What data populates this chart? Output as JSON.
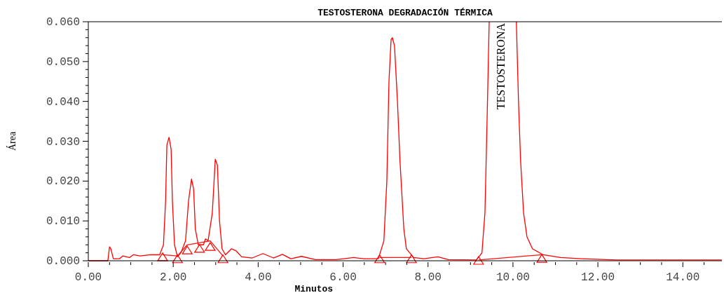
{
  "chart_data": {
    "type": "line",
    "title": "TESTOSTERONA DEGRADACIÓN TÉRMICA",
    "xlabel": "Minutos",
    "ylabel": "Área",
    "xlim": [
      0,
      14.92
    ],
    "ylim": [
      0,
      0.06
    ],
    "xticks": [
      {
        "value": 0,
        "label": "0.00"
      },
      {
        "value": 0.5,
        "label": null
      },
      {
        "value": 1,
        "label": null
      },
      {
        "value": 1.5,
        "label": null
      },
      {
        "value": 2,
        "label": "2.00"
      },
      {
        "value": 2.5,
        "label": null
      },
      {
        "value": 3,
        "label": null
      },
      {
        "value": 3.5,
        "label": null
      },
      {
        "value": 4,
        "label": "4.00"
      },
      {
        "value": 4.5,
        "label": null
      },
      {
        "value": 5,
        "label": null
      },
      {
        "value": 5.5,
        "label": null
      },
      {
        "value": 6,
        "label": "6.00"
      },
      {
        "value": 6.5,
        "label": null
      },
      {
        "value": 7,
        "label": null
      },
      {
        "value": 7.5,
        "label": null
      },
      {
        "value": 8,
        "label": "8.00"
      },
      {
        "value": 8.5,
        "label": null
      },
      {
        "value": 9,
        "label": null
      },
      {
        "value": 9.5,
        "label": null
      },
      {
        "value": 10,
        "label": "10.00"
      },
      {
        "value": 10.5,
        "label": null
      },
      {
        "value": 11,
        "label": null
      },
      {
        "value": 11.5,
        "label": null
      },
      {
        "value": 12,
        "label": "12.00"
      },
      {
        "value": 12.5,
        "label": null
      },
      {
        "value": 13,
        "label": null
      },
      {
        "value": 13.5,
        "label": null
      },
      {
        "value": 14,
        "label": "14.00"
      },
      {
        "value": 14.5,
        "label": null
      }
    ],
    "yticks": [
      {
        "value": 0,
        "label": "0.000"
      },
      {
        "value": 0.002,
        "label": null
      },
      {
        "value": 0.004,
        "label": null
      },
      {
        "value": 0.006,
        "label": null
      },
      {
        "value": 0.008,
        "label": null
      },
      {
        "value": 0.01,
        "label": "0.010"
      },
      {
        "value": 0.012,
        "label": null
      },
      {
        "value": 0.014,
        "label": null
      },
      {
        "value": 0.016,
        "label": null
      },
      {
        "value": 0.018,
        "label": null
      },
      {
        "value": 0.02,
        "label": "0.020"
      },
      {
        "value": 0.022,
        "label": null
      },
      {
        "value": 0.024,
        "label": null
      },
      {
        "value": 0.026,
        "label": null
      },
      {
        "value": 0.028,
        "label": null
      },
      {
        "value": 0.03,
        "label": "0.030"
      },
      {
        "value": 0.032,
        "label": null
      },
      {
        "value": 0.034,
        "label": null
      },
      {
        "value": 0.036,
        "label": null
      },
      {
        "value": 0.038,
        "label": null
      },
      {
        "value": 0.04,
        "label": "0.040"
      },
      {
        "value": 0.042,
        "label": null
      },
      {
        "value": 0.044,
        "label": null
      },
      {
        "value": 0.046,
        "label": null
      },
      {
        "value": 0.048,
        "label": null
      },
      {
        "value": 0.05,
        "label": "0.050"
      },
      {
        "value": 0.052,
        "label": null
      },
      {
        "value": 0.054,
        "label": null
      },
      {
        "value": 0.056,
        "label": null
      },
      {
        "value": 0.058,
        "label": null
      },
      {
        "value": 0.06,
        "label": "0.060"
      }
    ],
    "grid": false,
    "annotations": [
      "TESTOSTERONA"
    ],
    "series": [
      {
        "color": "#ff0000",
        "x": [
          0,
          0.46,
          0.5,
          0.53,
          0.59,
          0.73,
          0.81,
          0.97,
          1.06,
          1.22,
          1.47,
          1.68,
          1.77,
          1.82,
          1.85,
          1.9,
          1.95,
          1.98,
          2.03,
          2.1,
          2.18,
          2.29,
          2.36,
          2.43,
          2.48,
          2.52,
          2.59,
          2.71,
          2.76,
          2.82,
          2.92,
          2.99,
          3.04,
          3.09,
          3.15,
          3.23,
          3.37,
          3.48,
          3.61,
          3.86,
          4.11,
          4.36,
          4.57,
          4.77,
          5.02,
          5.35,
          5.84,
          6.25,
          6.5,
          6.83,
          6.96,
          7.03,
          7.08,
          7.13,
          7.16,
          7.21,
          7.28,
          7.34,
          7.43,
          7.49,
          7.66,
          7.9,
          8.23,
          8.48,
          9.14,
          9.27,
          9.34,
          9.39,
          9.44,
          9.75,
          10.08,
          10.13,
          10.18,
          10.25,
          10.33,
          10.46,
          10.71,
          11.12,
          11.62,
          12.44,
          13.6,
          14.92
        ],
        "values": [
          0,
          0,
          0.0035,
          0.003,
          0.0005,
          0.0005,
          0.0012,
          0.0008,
          0.0015,
          0.0012,
          0.0015,
          0.0015,
          0.004,
          0.015,
          0.029,
          0.031,
          0.028,
          0.015,
          0.004,
          0.001,
          0.002,
          0.005,
          0.015,
          0.0205,
          0.018,
          0.008,
          0.004,
          0.004,
          0.0055,
          0.005,
          0.012,
          0.0255,
          0.024,
          0.01,
          0.003,
          0.0015,
          0.003,
          0.0025,
          0.001,
          0.0007,
          0.0018,
          0.0007,
          0.0016,
          0.0005,
          0.0011,
          0.0003,
          0.0003,
          0.0008,
          0.0005,
          0.0005,
          0.005,
          0.02,
          0.045,
          0.0555,
          0.056,
          0.054,
          0.04,
          0.025,
          0.008,
          0.003,
          0.0008,
          0.0005,
          0.001,
          0.0003,
          0.0002,
          0.002,
          0.012,
          0.035,
          0.06,
          null,
          0.06,
          0.04,
          0.025,
          0.012,
          0.006,
          0.003,
          0.0015,
          0.0008,
          0.0005,
          0.0002,
          0.0002,
          0.0002
        ]
      },
      {
        "color": "#ff1010",
        "x": [
          1.75,
          2.1,
          2.33,
          2.62,
          2.87,
          3.17
        ],
        "values": [
          0.0015,
          0.0012,
          0.004,
          0.0045,
          0.005,
          0.0012
        ]
      },
      {
        "color": "#ff1010",
        "x": [
          6.86,
          7.61
        ],
        "values": [
          0.0008,
          0.0008
        ]
      },
      {
        "color": "#ff1010",
        "x": [
          9.19,
          10.68
        ],
        "values": [
          0.0002,
          0.0015
        ]
      },
      {
        "type": "scatter",
        "marker": "triangle",
        "color": "#ff0000",
        "x": [
          1.75,
          2.1,
          2.33,
          2.62,
          2.87,
          3.17,
          6.86,
          7.61,
          9.19,
          10.68
        ],
        "values": [
          0.0009,
          0.0004,
          0.0026,
          0.003,
          0.0035,
          0.0004,
          0.0004,
          0.0004,
          0,
          0.0005
        ]
      }
    ]
  }
}
